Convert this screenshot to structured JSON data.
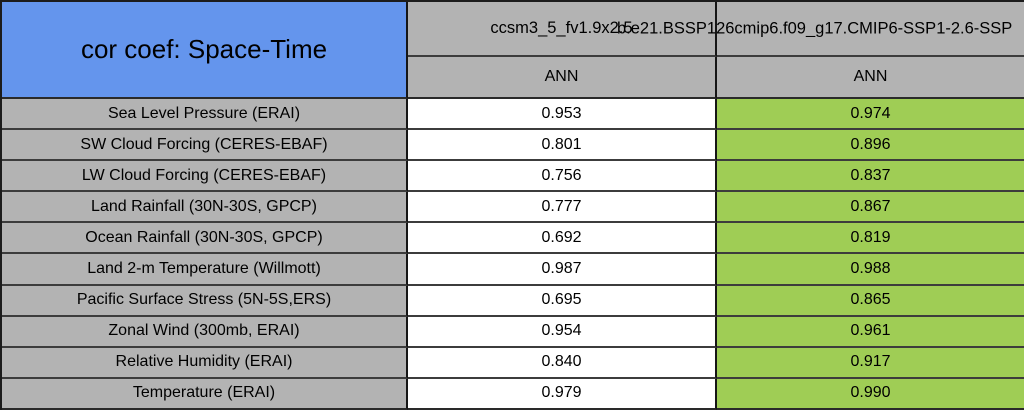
{
  "title": "cor coef: Space-Time",
  "columns": [
    {
      "model": "ccsm3_5_fv1.9x2.5",
      "season": "ANN"
    },
    {
      "model": "b.e21.BSSP126cmip6.f09_g17.CMIP6-SSP1-2.6-SSP",
      "season": "ANN"
    }
  ],
  "rows": [
    {
      "label": "Sea Level Pressure (ERAI)",
      "values": [
        "0.953",
        "0.974"
      ]
    },
    {
      "label": "SW Cloud Forcing (CERES-EBAF)",
      "values": [
        "0.801",
        "0.896"
      ]
    },
    {
      "label": "LW Cloud Forcing (CERES-EBAF)",
      "values": [
        "0.756",
        "0.837"
      ]
    },
    {
      "label": "Land Rainfall (30N-30S, GPCP)",
      "values": [
        "0.777",
        "0.867"
      ]
    },
    {
      "label": "Ocean Rainfall (30N-30S, GPCP)",
      "values": [
        "0.692",
        "0.819"
      ]
    },
    {
      "label": "Land 2-m Temperature (Willmott)",
      "values": [
        "0.987",
        "0.988"
      ]
    },
    {
      "label": "Pacific Surface Stress (5N-5S,ERS)",
      "values": [
        "0.695",
        "0.865"
      ]
    },
    {
      "label": "Zonal Wind (300mb, ERAI)",
      "values": [
        "0.954",
        "0.961"
      ]
    },
    {
      "label": "Relative Humidity (ERAI)",
      "values": [
        "0.840",
        "0.917"
      ]
    },
    {
      "label": "Temperature (ERAI)",
      "values": [
        "0.979",
        "0.990"
      ]
    }
  ],
  "colors": {
    "title_bg": "#6495ED",
    "header_bg": "#B3B3B3",
    "label_bg": "#B3B3B3",
    "case1_bg": "#FFFFFF",
    "case2_bg": "#9FCD55",
    "border_dark": "#1C1C1C",
    "border_row": "#3C3C3C"
  },
  "chart_data": {
    "type": "table",
    "title": "cor coef: Space-Time",
    "column_headers": [
      "ccsm3_5_fv1.9x2.5 (ANN)",
      "b.e21.BSSP126cmip6.f09_g17.CMIP6-SSP1-2.6-SSP (ANN)"
    ],
    "row_labels": [
      "Sea Level Pressure (ERAI)",
      "SW Cloud Forcing (CERES-EBAF)",
      "LW Cloud Forcing (CERES-EBAF)",
      "Land Rainfall (30N-30S, GPCP)",
      "Ocean Rainfall (30N-30S, GPCP)",
      "Land 2-m Temperature (Willmott)",
      "Pacific Surface Stress (5N-5S,ERS)",
      "Zonal Wind (300mb, ERAI)",
      "Relative Humidity (ERAI)",
      "Temperature (ERAI)"
    ],
    "series": [
      {
        "name": "ccsm3_5_fv1.9x2.5",
        "values": [
          0.953,
          0.801,
          0.756,
          0.777,
          0.692,
          0.987,
          0.695,
          0.954,
          0.84,
          0.979
        ]
      },
      {
        "name": "b.e21.BSSP126cmip6.f09_g17.CMIP6-SSP1-2.6-SSP",
        "values": [
          0.974,
          0.896,
          0.837,
          0.867,
          0.819,
          0.988,
          0.865,
          0.961,
          0.917,
          0.99
        ]
      }
    ],
    "layout_hints": {
      "second_series_cells_highlighted_green": true,
      "right_edge_cropped": true
    }
  }
}
